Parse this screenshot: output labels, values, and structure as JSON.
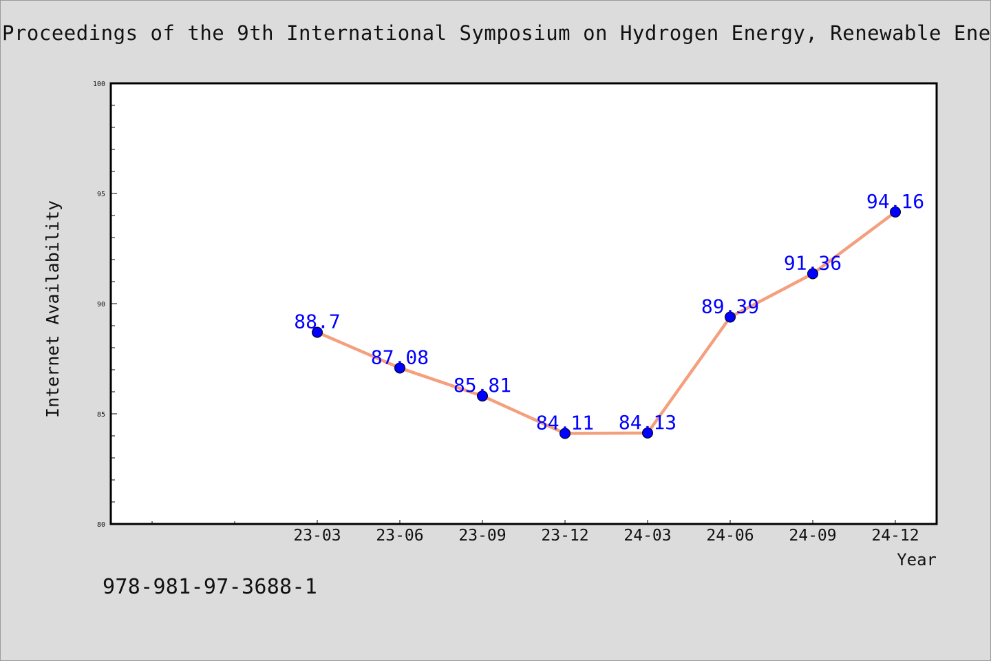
{
  "header": {
    "title": "Proceedings of the 9th International Symposium on Hydrogen Energy, Renewable Ene"
  },
  "footer": {
    "isbn": "978-981-97-3688-1"
  },
  "colors": {
    "line": "#f4a07e",
    "marker": "#0000ff",
    "label": "#0000ff",
    "background": "#dcdcdc",
    "plot_background": "#ffffff"
  },
  "chart_data": {
    "type": "line",
    "title": "",
    "xlabel": "Year",
    "ylabel": "Internet Availability",
    "categories": [
      "23-03",
      "23-06",
      "23-09",
      "23-12",
      "24-03",
      "24-06",
      "24-09",
      "24-12"
    ],
    "series": [
      {
        "values": [
          88.7,
          87.08,
          85.81,
          84.11,
          84.13,
          89.39,
          91.36,
          94.16
        ]
      }
    ],
    "data_labels": [
      "88.7",
      "87.08",
      "85.81",
      "84.11",
      "84.13",
      "89.39",
      "91.36",
      "94.16"
    ],
    "ylim": [
      80,
      100
    ],
    "yticks": [
      80,
      85,
      90,
      95,
      100
    ],
    "ytick_labels": [
      "80",
      "85",
      "90",
      "95",
      "100"
    ],
    "grid": false,
    "legend": "none"
  }
}
